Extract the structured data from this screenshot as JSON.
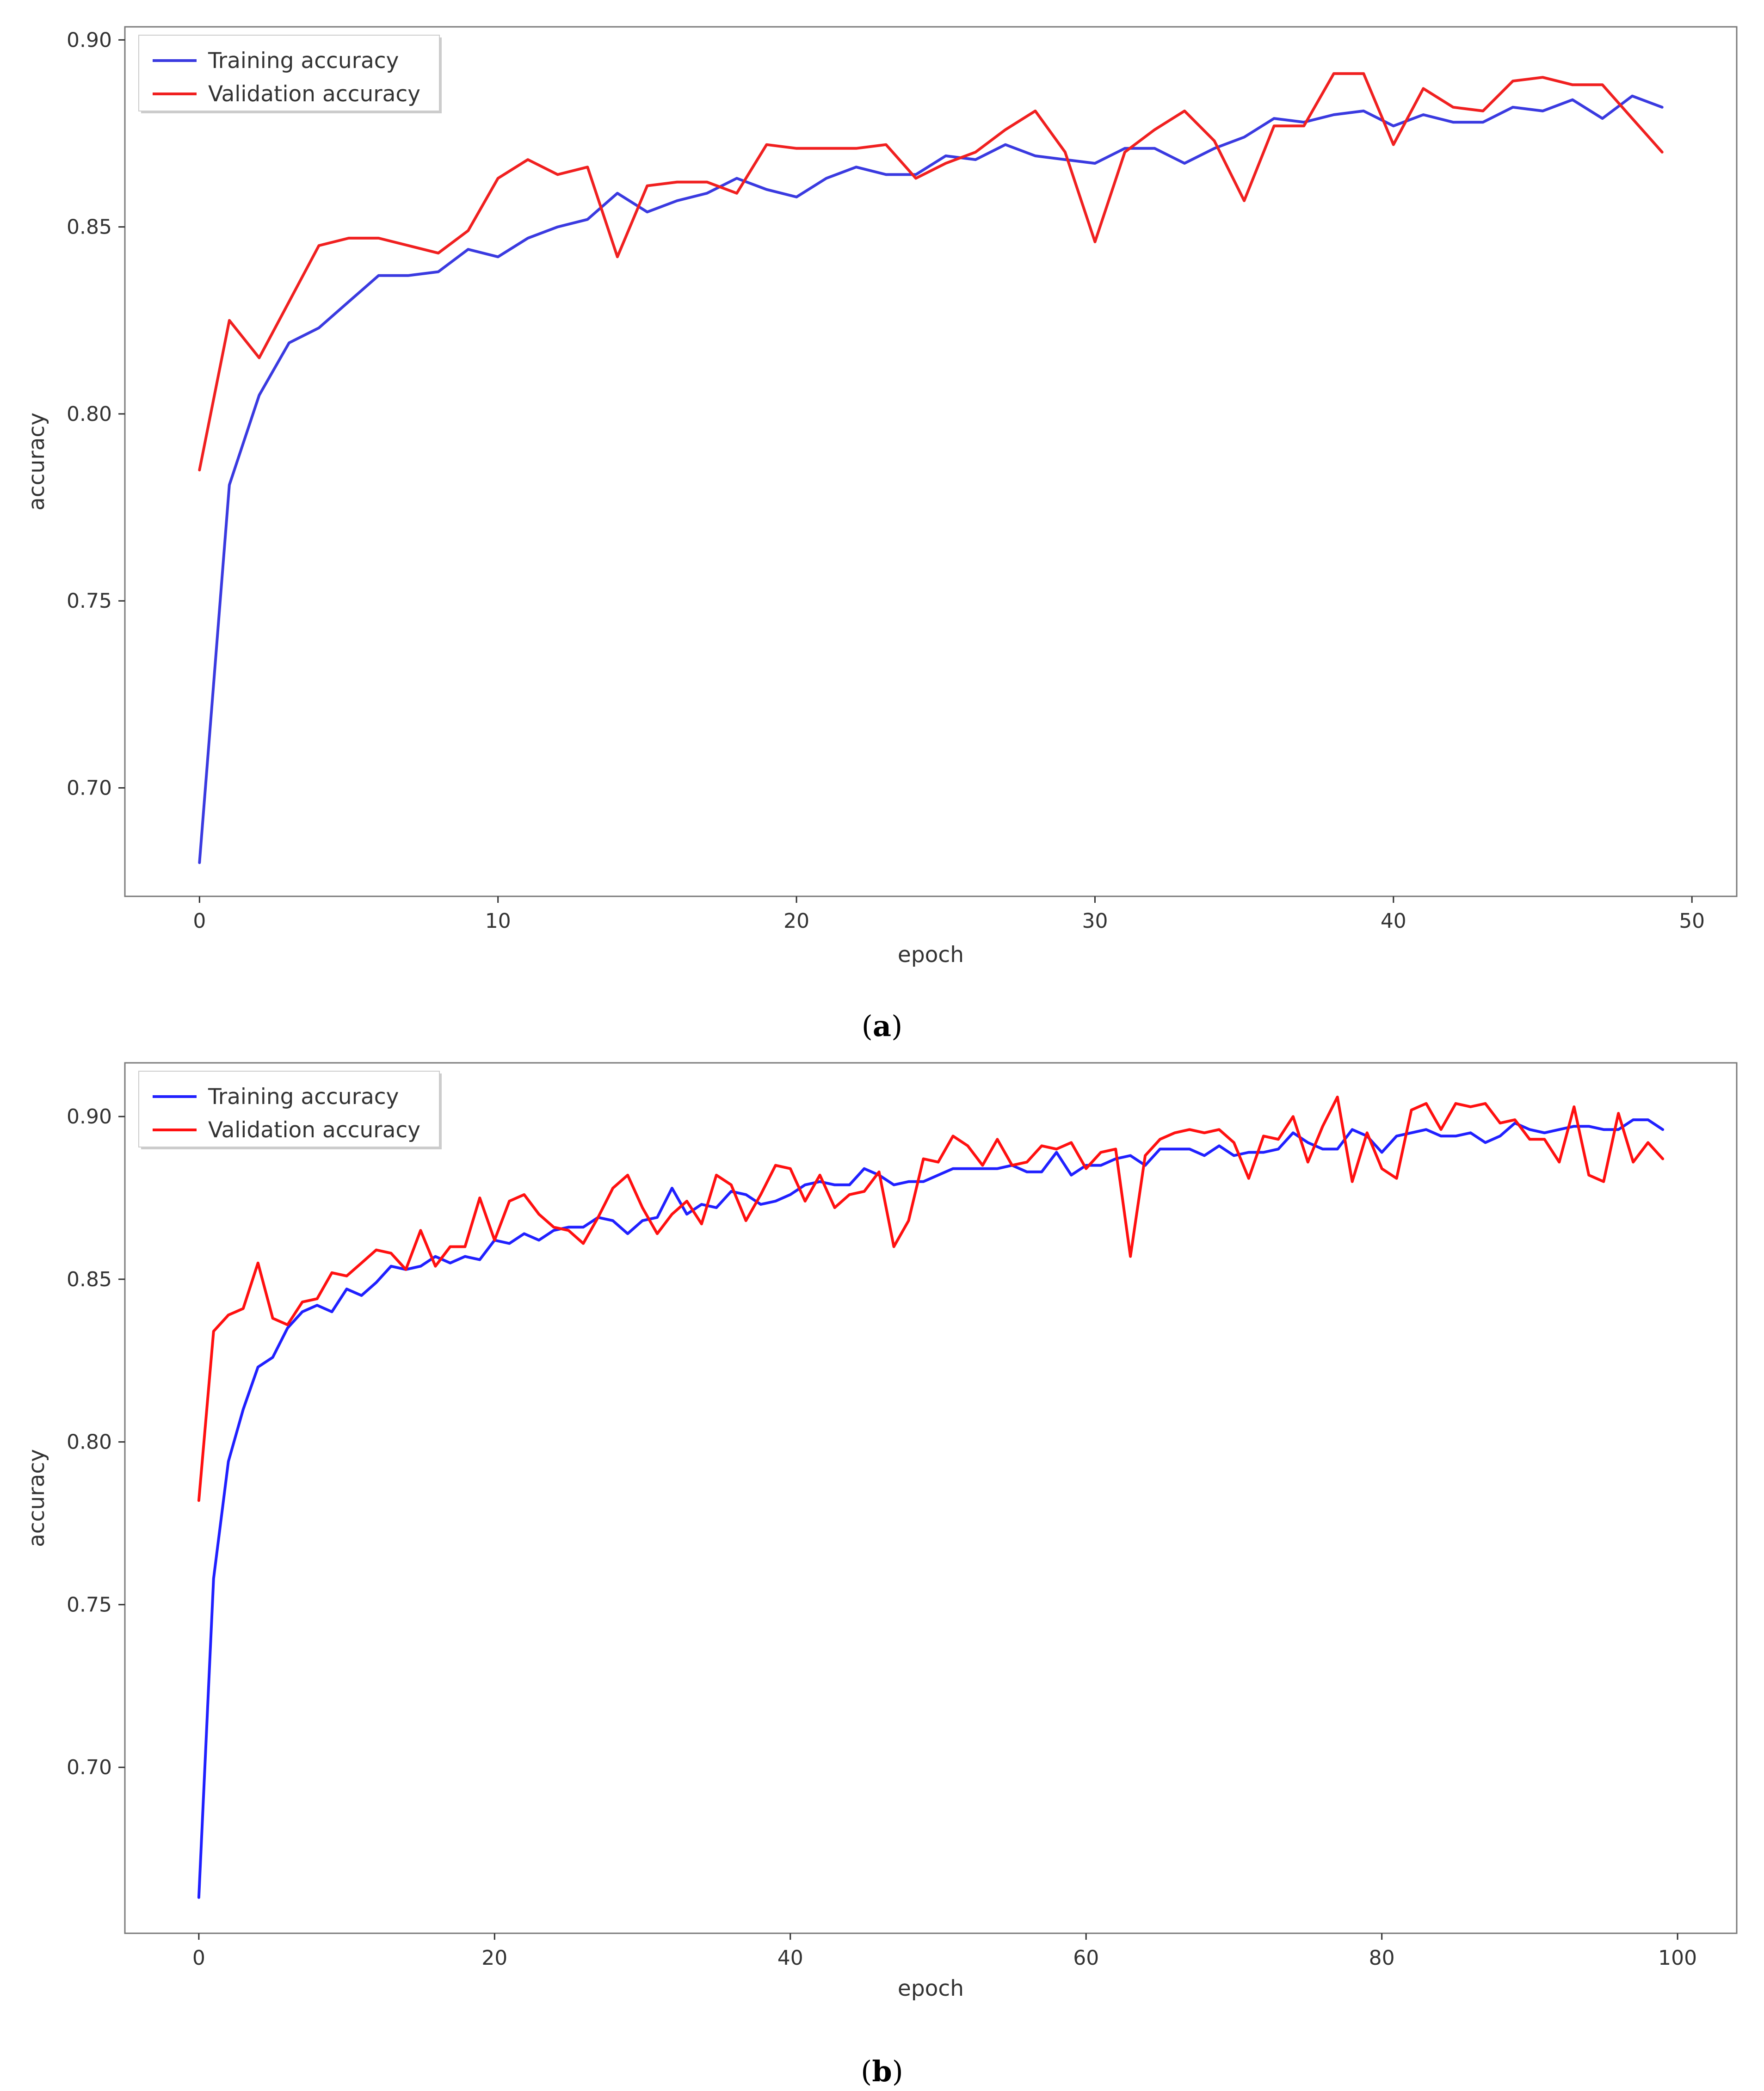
{
  "colors": {
    "training": "#3a3ae0",
    "validation": "#f02020",
    "frame": "#7a7a7a",
    "caption": "#000000"
  },
  "chart_data": [
    {
      "type": "line",
      "caption_letter": "a",
      "title": "",
      "xlabel": "epoch",
      "ylabel": "accuracy",
      "xlim": [
        -2.5,
        51.5
      ],
      "ylim": [
        0.671,
        0.9035
      ],
      "xticks": [
        0,
        10,
        20,
        30,
        40,
        50
      ],
      "yticks": [
        0.7,
        0.75,
        0.8,
        0.85,
        0.9
      ],
      "ytick_labels": [
        "0.70",
        "0.75",
        "0.80",
        "0.85",
        "0.90"
      ],
      "grid": false,
      "legend": "top-left",
      "series": [
        {
          "name": "Training accuracy",
          "color": "#3a3ae0",
          "x": [
            0,
            1,
            2,
            3,
            4,
            5,
            6,
            7,
            8,
            9,
            10,
            11,
            12,
            13,
            14,
            15,
            16,
            17,
            18,
            19,
            20,
            21,
            22,
            23,
            24,
            25,
            26,
            27,
            28,
            29,
            30,
            31,
            32,
            33,
            34,
            35,
            36,
            37,
            38,
            39,
            40,
            41,
            42,
            43,
            44,
            45,
            46,
            47,
            48,
            49
          ],
          "values": [
            0.68,
            0.781,
            0.805,
            0.819,
            0.823,
            0.83,
            0.837,
            0.837,
            0.838,
            0.844,
            0.842,
            0.847,
            0.85,
            0.852,
            0.859,
            0.854,
            0.857,
            0.859,
            0.863,
            0.86,
            0.858,
            0.863,
            0.866,
            0.864,
            0.864,
            0.869,
            0.868,
            0.872,
            0.869,
            0.868,
            0.867,
            0.871,
            0.871,
            0.867,
            0.871,
            0.874,
            0.879,
            0.878,
            0.88,
            0.881,
            0.877,
            0.88,
            0.878,
            0.878,
            0.882,
            0.881,
            0.884,
            0.879,
            0.885,
            0.882
          ]
        },
        {
          "name": "Validation accuracy",
          "color": "#f02020",
          "x": [
            0,
            1,
            2,
            3,
            4,
            5,
            6,
            7,
            8,
            9,
            10,
            11,
            12,
            13,
            14,
            15,
            16,
            17,
            18,
            19,
            20,
            21,
            22,
            23,
            24,
            25,
            26,
            27,
            28,
            29,
            30,
            31,
            32,
            33,
            34,
            35,
            36,
            37,
            38,
            39,
            40,
            41,
            42,
            43,
            44,
            45,
            46,
            47,
            48,
            49
          ],
          "values": [
            0.785,
            0.825,
            0.815,
            0.83,
            0.845,
            0.847,
            0.847,
            0.845,
            0.843,
            0.849,
            0.863,
            0.868,
            0.864,
            0.866,
            0.842,
            0.861,
            0.862,
            0.862,
            0.859,
            0.872,
            0.871,
            0.871,
            0.871,
            0.872,
            0.863,
            0.867,
            0.87,
            0.876,
            0.881,
            0.87,
            0.846,
            0.87,
            0.876,
            0.881,
            0.873,
            0.857,
            0.877,
            0.877,
            0.891,
            0.891,
            0.872,
            0.887,
            0.882,
            0.881,
            0.889,
            0.89,
            0.888,
            0.888,
            0.879,
            0.87
          ]
        }
      ]
    },
    {
      "type": "line",
      "caption_letter": "b",
      "title": "",
      "xlabel": "epoch",
      "ylabel": "accuracy",
      "xlim": [
        -5,
        104
      ],
      "ylim": [
        0.649,
        0.9165
      ],
      "xticks": [
        0,
        20,
        40,
        60,
        80,
        100
      ],
      "yticks": [
        0.7,
        0.75,
        0.8,
        0.85,
        0.9
      ],
      "ytick_labels": [
        "0.70",
        "0.75",
        "0.80",
        "0.85",
        "0.90"
      ],
      "grid": false,
      "legend": "top-left",
      "series": [
        {
          "name": "Training accuracy",
          "color": "#2020ff",
          "x": [
            0,
            1,
            2,
            3,
            4,
            5,
            6,
            7,
            8,
            9,
            10,
            11,
            12,
            13,
            14,
            15,
            16,
            17,
            18,
            19,
            20,
            21,
            22,
            23,
            24,
            25,
            26,
            27,
            28,
            29,
            30,
            31,
            32,
            33,
            34,
            35,
            36,
            37,
            38,
            39,
            40,
            41,
            42,
            43,
            44,
            45,
            46,
            47,
            48,
            49,
            50,
            51,
            52,
            53,
            54,
            55,
            56,
            57,
            58,
            59,
            60,
            61,
            62,
            63,
            64,
            65,
            66,
            67,
            68,
            69,
            70,
            71,
            72,
            73,
            74,
            75,
            76,
            77,
            78,
            79,
            80,
            81,
            82,
            83,
            84,
            85,
            86,
            87,
            88,
            89,
            90,
            91,
            92,
            93,
            94,
            95,
            96,
            97,
            98,
            99
          ],
          "values": [
            0.66,
            0.758,
            0.794,
            0.81,
            0.823,
            0.826,
            0.835,
            0.84,
            0.842,
            0.84,
            0.847,
            0.845,
            0.849,
            0.854,
            0.853,
            0.854,
            0.857,
            0.855,
            0.857,
            0.856,
            0.862,
            0.861,
            0.864,
            0.862,
            0.865,
            0.866,
            0.866,
            0.869,
            0.868,
            0.864,
            0.868,
            0.869,
            0.878,
            0.87,
            0.873,
            0.872,
            0.877,
            0.876,
            0.873,
            0.874,
            0.876,
            0.879,
            0.88,
            0.879,
            0.879,
            0.884,
            0.882,
            0.879,
            0.88,
            0.88,
            0.882,
            0.884,
            0.884,
            0.884,
            0.884,
            0.885,
            0.883,
            0.883,
            0.889,
            0.882,
            0.885,
            0.885,
            0.887,
            0.888,
            0.885,
            0.89,
            0.89,
            0.89,
            0.888,
            0.891,
            0.888,
            0.889,
            0.889,
            0.89,
            0.895,
            0.892,
            0.89,
            0.89,
            0.896,
            0.894,
            0.889,
            0.894,
            0.895,
            0.896,
            0.894,
            0.894,
            0.895,
            0.892,
            0.894,
            0.898,
            0.896,
            0.895,
            0.896,
            0.897,
            0.897,
            0.896,
            0.896,
            0.899,
            0.899,
            0.896
          ]
        },
        {
          "name": "Validation accuracy",
          "color": "#ff1010",
          "x": [
            0,
            1,
            2,
            3,
            4,
            5,
            6,
            7,
            8,
            9,
            10,
            11,
            12,
            13,
            14,
            15,
            16,
            17,
            18,
            19,
            20,
            21,
            22,
            23,
            24,
            25,
            26,
            27,
            28,
            29,
            30,
            31,
            32,
            33,
            34,
            35,
            36,
            37,
            38,
            39,
            40,
            41,
            42,
            43,
            44,
            45,
            46,
            47,
            48,
            49,
            50,
            51,
            52,
            53,
            54,
            55,
            56,
            57,
            58,
            59,
            60,
            61,
            62,
            63,
            64,
            65,
            66,
            67,
            68,
            69,
            70,
            71,
            72,
            73,
            74,
            75,
            76,
            77,
            78,
            79,
            80,
            81,
            82,
            83,
            84,
            85,
            86,
            87,
            88,
            89,
            90,
            91,
            92,
            93,
            94,
            95,
            96,
            97,
            98,
            99
          ],
          "values": [
            0.782,
            0.834,
            0.839,
            0.841,
            0.855,
            0.838,
            0.836,
            0.843,
            0.844,
            0.852,
            0.851,
            0.855,
            0.859,
            0.858,
            0.853,
            0.865,
            0.854,
            0.86,
            0.86,
            0.875,
            0.862,
            0.874,
            0.876,
            0.87,
            0.866,
            0.865,
            0.861,
            0.869,
            0.878,
            0.882,
            0.872,
            0.864,
            0.87,
            0.874,
            0.867,
            0.882,
            0.879,
            0.868,
            0.876,
            0.885,
            0.884,
            0.874,
            0.882,
            0.872,
            0.876,
            0.877,
            0.883,
            0.86,
            0.868,
            0.887,
            0.886,
            0.894,
            0.891,
            0.885,
            0.893,
            0.885,
            0.886,
            0.891,
            0.89,
            0.892,
            0.884,
            0.889,
            0.89,
            0.857,
            0.888,
            0.893,
            0.895,
            0.896,
            0.895,
            0.896,
            0.892,
            0.881,
            0.894,
            0.893,
            0.9,
            0.886,
            0.897,
            0.906,
            0.88,
            0.895,
            0.884,
            0.881,
            0.902,
            0.904,
            0.896,
            0.904,
            0.903,
            0.904,
            0.898,
            0.899,
            0.893,
            0.893,
            0.886,
            0.903,
            0.882,
            0.88,
            0.901,
            0.886,
            0.892,
            0.887
          ]
        }
      ]
    }
  ]
}
